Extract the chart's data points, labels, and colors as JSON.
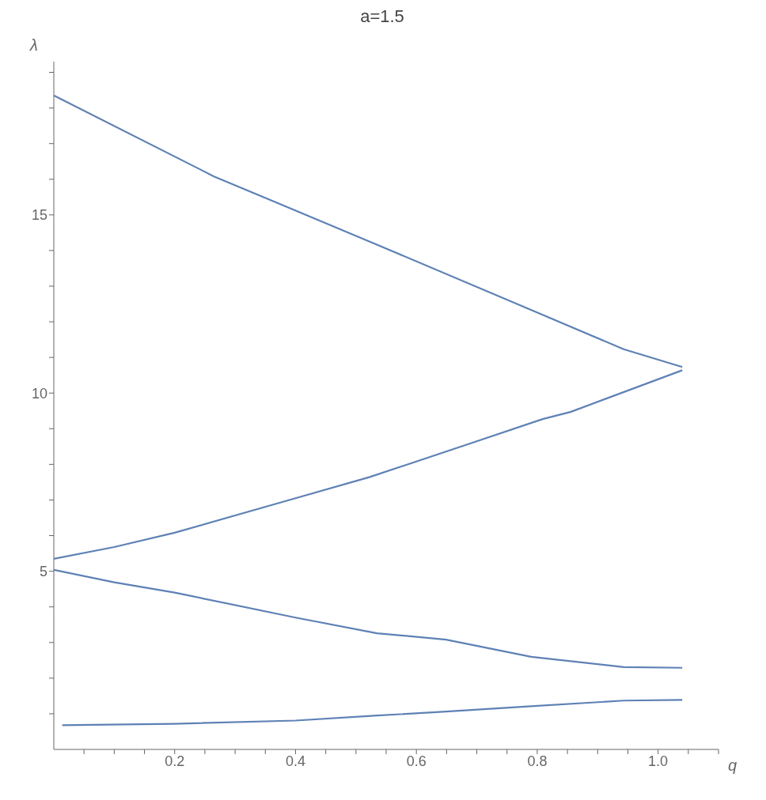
{
  "chart_data": {
    "type": "line",
    "title": "a=1.5",
    "xlabel": "q",
    "ylabel": "λ",
    "xlim": [
      0,
      1.1
    ],
    "ylim": [
      0,
      19.3
    ],
    "xticks": [
      {
        "value": 0.05,
        "label": null
      },
      {
        "value": 0.1,
        "label": null
      },
      {
        "value": 0.15,
        "label": null
      },
      0.2,
      {
        "value": 0.25,
        "label": null
      },
      {
        "value": 0.3,
        "label": null
      },
      {
        "value": 0.35,
        "label": null
      },
      0.4,
      {
        "value": 0.45,
        "label": null
      },
      {
        "value": 0.5,
        "label": null
      },
      {
        "value": 0.55,
        "label": null
      },
      0.6,
      {
        "value": 0.65,
        "label": null
      },
      {
        "value": 0.7,
        "label": null
      },
      {
        "value": 0.75,
        "label": null
      },
      0.8,
      {
        "value": 0.85,
        "label": null
      },
      {
        "value": 0.9,
        "label": null
      },
      {
        "value": 0.95,
        "label": null
      },
      {
        "value": 1.0,
        "label": "1.0"
      },
      {
        "value": 1.05,
        "label": null
      },
      {
        "value": 1.1,
        "label": null
      }
    ],
    "yticks": [
      {
        "value": 1,
        "label": null
      },
      {
        "value": 2,
        "label": null
      },
      {
        "value": 3,
        "label": null
      },
      {
        "value": 4,
        "label": null
      },
      5,
      {
        "value": 6,
        "label": null
      },
      {
        "value": 7,
        "label": null
      },
      {
        "value": 8,
        "label": null
      },
      {
        "value": 9,
        "label": null
      },
      10,
      {
        "value": 11,
        "label": null
      },
      {
        "value": 12,
        "label": null
      },
      {
        "value": 13,
        "label": null
      },
      {
        "value": 14,
        "label": null
      },
      15,
      {
        "value": 16,
        "label": null
      },
      {
        "value": 17,
        "label": null
      },
      {
        "value": 18,
        "label": null
      },
      {
        "value": 19,
        "label": null
      }
    ],
    "marker": "none",
    "line_style": "solid",
    "series": [
      {
        "color": "#5e81b5",
        "x": [
          0,
          0.265,
          0.53,
          0.775,
          0.943,
          1.04
        ],
        "values": [
          18.35,
          16.08,
          14.2,
          12.44,
          11.23,
          10.73
        ]
      },
      {
        "color": "#5e81b5",
        "x": [
          0,
          0.1,
          0.2,
          0.4,
          0.522,
          0.69,
          0.809,
          0.855,
          1.04
        ],
        "values": [
          5.35,
          5.68,
          6.08,
          7.05,
          7.64,
          8.59,
          9.27,
          9.47,
          10.64
        ]
      },
      {
        "color": "#5e81b5",
        "x": [
          0,
          0.1,
          0.2,
          0.4,
          0.535,
          0.649,
          0.79,
          0.943,
          1.04
        ],
        "values": [
          5.04,
          4.69,
          4.4,
          3.7,
          3.26,
          3.08,
          2.6,
          2.31,
          2.29
        ]
      },
      {
        "color": "#5e81b5",
        "x": [
          0.014,
          0.2,
          0.4,
          0.535,
          0.649,
          0.79,
          0.943,
          1.04
        ],
        "values": [
          0.68,
          0.72,
          0.81,
          0.95,
          1.06,
          1.21,
          1.37,
          1.39
        ]
      }
    ]
  }
}
